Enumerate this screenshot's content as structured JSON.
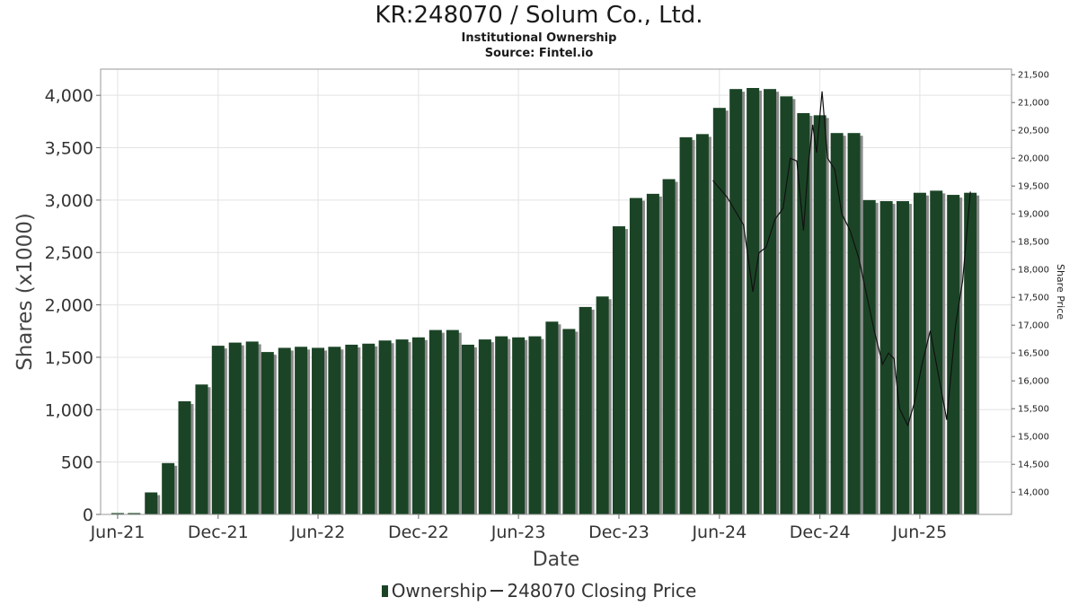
{
  "header": {
    "title": "KR:248070 / Solum Co., Ltd.",
    "subtitle": "Institutional Ownership",
    "source": "Source: Fintel.io"
  },
  "legend": {
    "ownership_label": "Ownership",
    "price_label": "248070 Closing Price"
  },
  "colors": {
    "bar": "#1b4426",
    "bar_shadow": "#8a8a8a",
    "price_line": "#111111",
    "grid": "#e3e3e3"
  },
  "chart_data": {
    "type": "bar",
    "xlabel": "Date",
    "ylabel": "Shares (x1000)",
    "y2label": "Share Price",
    "ylim": [
      0,
      4250
    ],
    "y2lim": [
      13600,
      21600
    ],
    "yticks": [
      0,
      500,
      1000,
      1500,
      2000,
      2500,
      3000,
      3500,
      4000
    ],
    "ytick_labels": [
      "0",
      "500",
      "1,000",
      "1,500",
      "2,000",
      "2,500",
      "3,000",
      "3,500",
      "4,000"
    ],
    "y2ticks": [
      14000,
      14500,
      15000,
      15500,
      16000,
      16500,
      17000,
      17500,
      18000,
      18500,
      19000,
      19500,
      20000,
      20500,
      21000,
      21500
    ],
    "y2tick_labels": [
      "14,000",
      "14,500",
      "15,000",
      "15,500",
      "16,000",
      "16,500",
      "17,000",
      "17,500",
      "18,000",
      "18,500",
      "19,000",
      "19,500",
      "20,000",
      "20,500",
      "21,000",
      "21,500"
    ],
    "xlim": [
      "2021-05-01",
      "2025-11-15"
    ],
    "xticks": [
      "2021-06-01",
      "2021-12-01",
      "2022-06-01",
      "2022-12-01",
      "2023-06-01",
      "2023-12-01",
      "2024-06-01",
      "2024-12-01",
      "2025-06-01"
    ],
    "xtick_labels": [
      "Jun-21",
      "Dec-21",
      "Jun-22",
      "Dec-22",
      "Jun-23",
      "Dec-23",
      "Jun-24",
      "Dec-24",
      "Jun-25"
    ],
    "grid": true,
    "legend_position": "bottom-center",
    "series": [
      {
        "name": "Ownership",
        "type": "bar",
        "x": [
          "2021-06-01",
          "2021-07-01",
          "2021-08-01",
          "2021-09-01",
          "2021-10-01",
          "2021-11-01",
          "2021-12-01",
          "2022-01-01",
          "2022-02-01",
          "2022-03-01",
          "2022-04-01",
          "2022-05-01",
          "2022-06-01",
          "2022-07-01",
          "2022-08-01",
          "2022-09-01",
          "2022-10-01",
          "2022-11-01",
          "2022-12-01",
          "2023-01-01",
          "2023-02-01",
          "2023-03-01",
          "2023-04-01",
          "2023-05-01",
          "2023-06-01",
          "2023-07-01",
          "2023-08-01",
          "2023-09-01",
          "2023-10-01",
          "2023-11-01",
          "2023-12-01",
          "2024-01-01",
          "2024-02-01",
          "2024-03-01",
          "2024-04-01",
          "2024-05-01",
          "2024-06-01",
          "2024-07-01",
          "2024-08-01",
          "2024-09-01",
          "2024-10-01",
          "2024-11-01",
          "2024-12-01",
          "2025-01-01",
          "2025-02-01",
          "2025-03-01",
          "2025-04-01",
          "2025-05-01",
          "2025-06-01",
          "2025-07-01",
          "2025-08-01",
          "2025-09-01"
        ],
        "values": [
          0,
          0,
          210,
          490,
          1080,
          1240,
          1610,
          1640,
          1650,
          1550,
          1590,
          1600,
          1590,
          1600,
          1620,
          1630,
          1660,
          1670,
          1690,
          1760,
          1760,
          1620,
          1670,
          1700,
          1690,
          1700,
          1840,
          1770,
          1980,
          2080,
          2750,
          3020,
          3060,
          3200,
          3600,
          3630,
          3880,
          4060,
          4070,
          4060,
          3990,
          3830,
          3810,
          3640,
          3640,
          3000,
          2990,
          2990,
          3070,
          3090,
          3050,
          3070
        ]
      },
      {
        "name": "248070 Closing Price",
        "type": "line",
        "x": [
          "2024-05-20",
          "2024-06-15",
          "2024-07-15",
          "2024-08-01",
          "2024-08-12",
          "2024-08-25",
          "2024-09-10",
          "2024-09-25",
          "2024-10-08",
          "2024-10-20",
          "2024-11-01",
          "2024-11-10",
          "2024-11-18",
          "2024-11-25",
          "2024-12-05",
          "2024-12-15",
          "2024-12-28",
          "2025-01-10",
          "2025-01-25",
          "2025-02-10",
          "2025-02-25",
          "2025-03-10",
          "2025-03-25",
          "2025-04-05",
          "2025-04-15",
          "2025-04-25",
          "2025-05-10",
          "2025-05-22",
          "2025-06-05",
          "2025-06-20",
          "2025-07-05",
          "2025-07-20",
          "2025-08-05",
          "2025-08-18",
          "2025-09-01"
        ],
        "values": [
          19600,
          19300,
          18800,
          17600,
          18300,
          18400,
          18900,
          19100,
          20000,
          19950,
          18700,
          19900,
          20600,
          20100,
          21200,
          20000,
          19800,
          19000,
          18700,
          18200,
          17500,
          16900,
          16300,
          16500,
          16400,
          15500,
          15200,
          15600,
          16300,
          16900,
          16100,
          15300,
          17000,
          17800,
          19400
        ]
      }
    ]
  }
}
